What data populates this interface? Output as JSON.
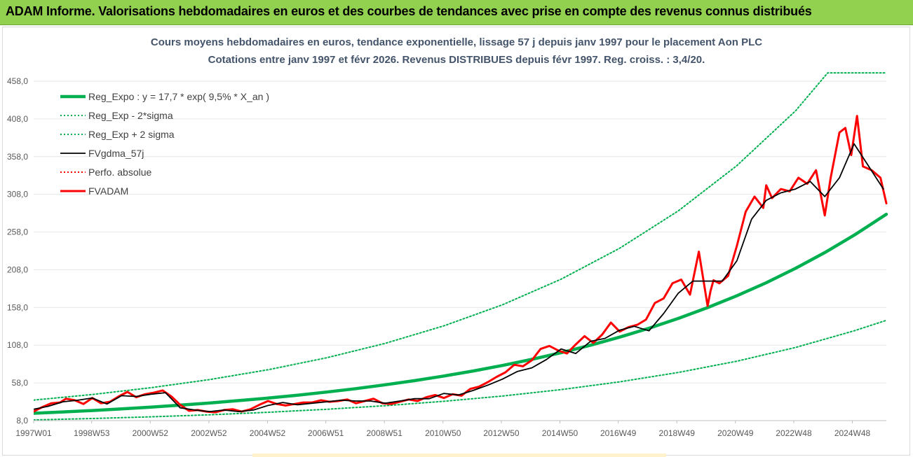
{
  "banner": {
    "title": "ADAM Informe. Valorisations hebdomadaires en euros et des courbes de tendances avec prise en compte des revenus connus distribués"
  },
  "chart_data": {
    "type": "line",
    "title": "Cours moyens hebdomadaires en euros, tendance exponentielle, lissage 57 j depuis janv 1997 pour le placement Aon PLC",
    "subtitle": "Cotations entre janv 1997 et févr 2026. Revenus DISTRIBUES depuis févr 1997.  Reg. croiss. : 3,4/20.",
    "xlabel": "",
    "ylabel": "",
    "ylim": [
      8.0,
      458.0
    ],
    "xlim": [
      1997.0,
      2026.1
    ],
    "yticks": [
      8.0,
      58.0,
      108.0,
      158.0,
      208.0,
      258.0,
      308.0,
      358.0,
      408.0,
      458.0
    ],
    "ytick_labels": [
      "8,0",
      "58,0",
      "108,0",
      "158,0",
      "208,0",
      "258,0",
      "308,0",
      "358,0",
      "408,0",
      "458,0"
    ],
    "xticks": [
      1997.0,
      1998.98,
      2000.98,
      2002.98,
      2004.98,
      2006.97,
      2008.97,
      2010.97,
      2012.96,
      2014.96,
      2016.95,
      2018.95,
      2020.95,
      2022.94,
      2024.94
    ],
    "xtick_labels": [
      "1997W01",
      "1998W53",
      "2000W52",
      "2002W52",
      "2004W52",
      "2006W51",
      "2008W51",
      "2010W50",
      "2012W50",
      "2014W50",
      "2016W49",
      "2018W49",
      "2020W49",
      "2022W48",
      "2024W48"
    ],
    "legend_position": "top-left",
    "series": [
      {
        "name": "Reg_Expo : y = 17,7 * exp( 9,5% *  X_an )",
        "color": "#00b050",
        "style": "solid-thick",
        "x": [
          1997,
          1998,
          1999,
          2000,
          2001,
          2002,
          2003,
          2004,
          2005,
          2006,
          2007,
          2008,
          2009,
          2010,
          2011,
          2012,
          2013,
          2014,
          2015,
          2016,
          2017,
          2018,
          2019,
          2020,
          2021,
          2022,
          2023,
          2024,
          2025,
          2026.1
        ],
        "y": [
          17.7,
          19.5,
          21.4,
          23.6,
          25.9,
          28.5,
          31.3,
          34.5,
          37.9,
          41.7,
          45.9,
          50.4,
          55.5,
          61.0,
          67.1,
          73.8,
          81.1,
          89.2,
          98.1,
          107.9,
          118.7,
          130.5,
          143.5,
          157.8,
          173.5,
          190.8,
          209.9,
          230.8,
          253.8,
          281.6
        ]
      },
      {
        "name": "Reg_Exp - 2*sigma",
        "color": "#00b050",
        "style": "dotted",
        "x": [
          1997,
          1999,
          2001,
          2003,
          2005,
          2007,
          2009,
          2011,
          2013,
          2015,
          2017,
          2019,
          2021,
          2023,
          2025,
          2026.1
        ],
        "y": [
          8.9,
          10.8,
          13.0,
          15.7,
          19.0,
          23.0,
          27.8,
          33.6,
          40.6,
          49.1,
          59.4,
          71.8,
          86.8,
          105.0,
          127.0,
          141.0
        ]
      },
      {
        "name": "Reg_Exp + 2 sigma",
        "color": "#00b050",
        "style": "dotted",
        "x": [
          1997,
          1999,
          2001,
          2003,
          2005,
          2007,
          2009,
          2011,
          2013,
          2015,
          2017,
          2019,
          2021,
          2023,
          2024.1,
          2025,
          2026.1
        ],
        "y": [
          35.2,
          42.6,
          51.6,
          62.4,
          75.5,
          91.3,
          110.4,
          133.6,
          161.6,
          195.5,
          236.5,
          286.1,
          346.1,
          418.7,
          469.0,
          469.0,
          469.0
        ]
      },
      {
        "name": "FVgdma_57j",
        "color": "#000000",
        "style": "solid",
        "x": [
          1997.0,
          1997.5,
          1998.0,
          1998.5,
          1999.0,
          1999.5,
          2000.0,
          2000.5,
          2001.0,
          2001.5,
          2002.0,
          2002.5,
          2003.0,
          2003.5,
          2004.0,
          2004.5,
          2005.0,
          2005.5,
          2006.0,
          2006.5,
          2007.0,
          2007.5,
          2008.0,
          2008.5,
          2009.0,
          2009.5,
          2010.0,
          2010.5,
          2011.0,
          2011.5,
          2012.0,
          2012.5,
          2013.0,
          2013.5,
          2014.0,
          2014.5,
          2015.0,
          2015.5,
          2016.0,
          2016.5,
          2017.0,
          2017.5,
          2018.0,
          2018.5,
          2019.0,
          2019.5,
          2020.0,
          2020.5,
          2021.0,
          2021.5,
          2022.0,
          2022.5,
          2023.0,
          2023.5,
          2024.0,
          2024.5,
          2025.0,
          2025.5,
          2026.0
        ],
        "y": [
          23.0,
          27.0,
          33.0,
          35.0,
          38.0,
          30.0,
          41.0,
          40.0,
          43.0,
          45.0,
          25.0,
          22.0,
          20.0,
          22.0,
          20.0,
          22.0,
          28.0,
          32.0,
          29.0,
          31.0,
          33.0,
          35.0,
          34.0,
          34.0,
          31.0,
          34.0,
          37.0,
          37.0,
          44.0,
          42.0,
          48.0,
          55.0,
          63.0,
          73.0,
          78.0,
          89.0,
          103.0,
          97.0,
          113.0,
          117.0,
          128.0,
          133.0,
          127.0,
          150.0,
          177.0,
          193.0,
          193.0,
          193.0,
          220.0,
          275.0,
          300.0,
          310.0,
          315.0,
          325.0,
          305.0,
          330.0,
          375.0,
          345.0,
          315.0
        ]
      },
      {
        "name": "Perfo. absolue",
        "color": "#ff0000",
        "style": "dotted",
        "x": [],
        "y": []
      },
      {
        "name": "FVADAM",
        "color": "#ff0000",
        "style": "solid-thick",
        "x": [
          1997.0,
          1997.3,
          1997.6,
          1997.9,
          1998.1,
          1998.4,
          1998.7,
          1999.0,
          1999.3,
          1999.6,
          1999.9,
          2000.2,
          2000.5,
          2000.8,
          2001.1,
          2001.4,
          2001.7,
          2002.0,
          2002.3,
          2002.6,
          2002.9,
          2003.2,
          2003.5,
          2003.8,
          2004.1,
          2004.4,
          2004.7,
          2005.0,
          2005.3,
          2005.6,
          2005.9,
          2006.2,
          2006.5,
          2006.8,
          2007.1,
          2007.4,
          2007.7,
          2008.0,
          2008.3,
          2008.6,
          2008.9,
          2009.2,
          2009.5,
          2009.8,
          2010.1,
          2010.4,
          2010.7,
          2011.0,
          2011.3,
          2011.6,
          2011.9,
          2012.2,
          2012.5,
          2012.8,
          2013.1,
          2013.4,
          2013.7,
          2014.0,
          2014.3,
          2014.6,
          2014.9,
          2015.2,
          2015.5,
          2015.8,
          2016.1,
          2016.4,
          2016.7,
          2017.0,
          2017.3,
          2017.6,
          2017.9,
          2018.2,
          2018.5,
          2018.8,
          2019.1,
          2019.4,
          2019.7,
          2020.0,
          2020.1,
          2020.2,
          2020.4,
          2020.7,
          2021.0,
          2021.3,
          2021.6,
          2021.9,
          2022.0,
          2022.2,
          2022.5,
          2022.8,
          2023.1,
          2023.4,
          2023.7,
          2024.0,
          2024.2,
          2024.5,
          2024.7,
          2024.9,
          2025.1,
          2025.3,
          2025.6,
          2025.9,
          2026.1
        ],
        "y": [
          20.0,
          26.0,
          31.0,
          32.0,
          37.0,
          35.0,
          30.0,
          38.0,
          31.0,
          33.0,
          40.0,
          46.0,
          39.0,
          43.0,
          45.0,
          48.0,
          40.0,
          29.0,
          21.0,
          22.0,
          20.0,
          19.0,
          22.0,
          23.0,
          20.0,
          23.0,
          29.0,
          34.0,
          30.0,
          28.0,
          30.0,
          32.0,
          32.0,
          35.0,
          33.0,
          34.0,
          36.0,
          31.0,
          34.0,
          37.0,
          31.0,
          30.0,
          33.0,
          36.0,
          34.0,
          39.0,
          42.0,
          38.0,
          43.0,
          41.0,
          50.0,
          53.0,
          59.0,
          66.0,
          72.0,
          82.0,
          80.0,
          88.0,
          103.0,
          107.0,
          101.0,
          97.0,
          109.0,
          120.0,
          111.0,
          122.0,
          138.0,
          126.0,
          132.0,
          135.0,
          142.0,
          164.0,
          170.0,
          190.0,
          195.0,
          175.0,
          232.0,
          160.0,
          180.0,
          194.0,
          190.0,
          200.0,
          240.0,
          285.0,
          305.0,
          290.0,
          320.0,
          303.0,
          315.0,
          312.0,
          330.0,
          322.0,
          340.0,
          280.0,
          330.0,
          390.0,
          396.0,
          360.0,
          412.0,
          345.0,
          340.0,
          330.0,
          296.0
        ]
      }
    ]
  }
}
